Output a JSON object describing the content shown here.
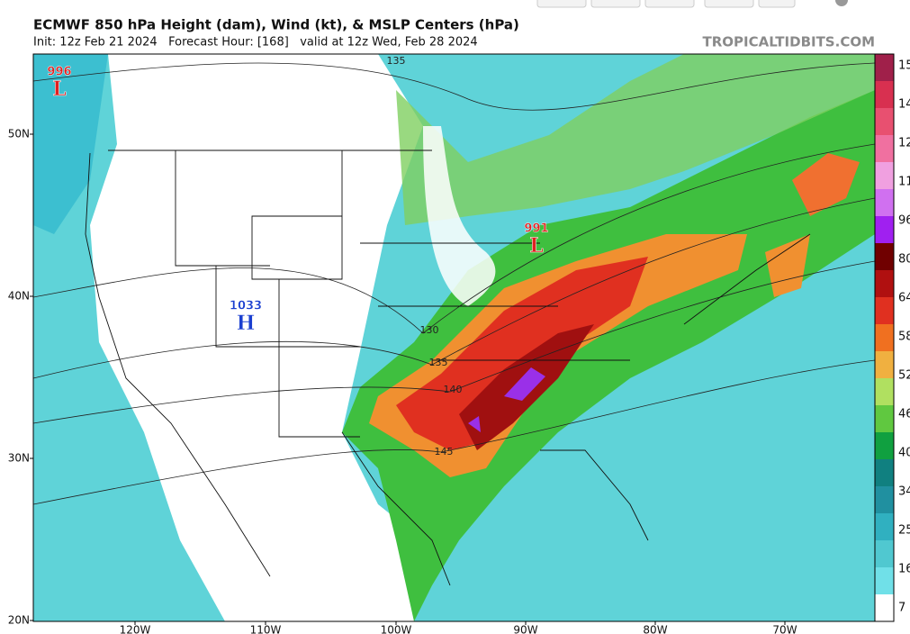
{
  "header": {
    "title": "ECMWF 850 hPa Height (dam), Wind (kt), & MSLP Centers (hPa)",
    "init": "Init: 12z Feb 21 2024   Forecast Hour: [168]   valid at 12z Wed, Feb 28 2024",
    "site": "TROPICALTIDBITS.COM"
  },
  "centers": [
    {
      "pressure": 996,
      "kind": "L"
    },
    {
      "pressure": 1033,
      "kind": "H"
    },
    {
      "pressure": 991,
      "kind": "L"
    }
  ],
  "contour_labels": [
    135,
    130,
    135,
    140,
    145
  ],
  "lat_labels": [
    "50N",
    "40N",
    "30N",
    "20N"
  ],
  "lon_labels": [
    "120W",
    "110W",
    "100W",
    "90W",
    "80W",
    "70W"
  ],
  "colorbar_labels": [
    15,
    14,
    12,
    11,
    96,
    80,
    64,
    58,
    52,
    46,
    40,
    34,
    25,
    16,
    7
  ]
}
